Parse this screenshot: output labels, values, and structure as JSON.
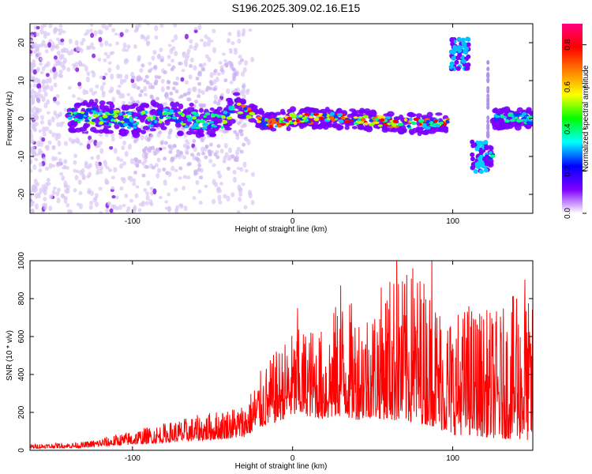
{
  "title": "S196.2025.309.02.16.E15",
  "chart_data": [
    {
      "type": "heatmap",
      "xlabel": "Height of straight line (km)",
      "ylabel": "Frequency (Hz)",
      "xlim": [
        -164,
        150
      ],
      "ylim": [
        -25,
        25
      ],
      "x_ticks": [
        -100,
        0,
        100
      ],
      "y_ticks": [
        -20,
        -10,
        0,
        10,
        20
      ],
      "colorbar": {
        "label": "Normalized spectral amplitude",
        "range": [
          0,
          0.9
        ],
        "ticks": [
          0.0,
          0.2,
          0.4,
          0.6,
          0.8
        ],
        "colors": [
          "#ffffff",
          "#7f00ff",
          "#0000ff",
          "#00ffff",
          "#00ff00",
          "#ffff00",
          "#ff8000",
          "#ff0000",
          "#ff0080"
        ]
      },
      "ridge": [
        {
          "x": -140,
          "f": 0.8
        },
        {
          "x": -120,
          "f": 0.5
        },
        {
          "x": -100,
          "f": -0.5
        },
        {
          "x": -80,
          "f": 0.5
        },
        {
          "x": -60,
          "f": -0.5
        },
        {
          "x": -45,
          "f": -1
        },
        {
          "x": -35,
          "f": 3
        },
        {
          "x": -25,
          "f": 1
        },
        {
          "x": -15,
          "f": -1.5
        },
        {
          "x": 0,
          "f": 0
        },
        {
          "x": 20,
          "f": 0
        },
        {
          "x": 40,
          "f": 0
        },
        {
          "x": 60,
          "f": -1
        },
        {
          "x": 80,
          "f": -1.5
        },
        {
          "x": 97,
          "f": -1
        },
        {
          "x": 100,
          "f": 17
        },
        {
          "x": 110,
          "f": 17
        },
        {
          "x": 113,
          "f": -10
        },
        {
          "x": 122,
          "f": -10
        },
        {
          "x": 125,
          "f": 0
        },
        {
          "x": 150,
          "f": 0
        }
      ],
      "grid": false
    },
    {
      "type": "line",
      "xlabel": "Height of straight line (km)",
      "ylabel": "SNR (10 * v/v)",
      "xlim": [
        -164,
        150
      ],
      "ylim": [
        0,
        1000
      ],
      "x_ticks": [
        -100,
        0,
        100
      ],
      "y_ticks": [
        0,
        200,
        400,
        600,
        800,
        1000
      ],
      "color": "#ff0000",
      "envelope": [
        {
          "x": -164,
          "base": 10,
          "amp": 25
        },
        {
          "x": -130,
          "base": 15,
          "amp": 30
        },
        {
          "x": -110,
          "base": 25,
          "amp": 60
        },
        {
          "x": -90,
          "base": 35,
          "amp": 90
        },
        {
          "x": -70,
          "base": 45,
          "amp": 120
        },
        {
          "x": -50,
          "base": 55,
          "amp": 150
        },
        {
          "x": -30,
          "base": 70,
          "amp": 180
        },
        {
          "x": -20,
          "base": 120,
          "amp": 300
        },
        {
          "x": -10,
          "base": 150,
          "amp": 380
        },
        {
          "x": 0,
          "base": 180,
          "amp": 450
        },
        {
          "x": 10,
          "base": 180,
          "amp": 480
        },
        {
          "x": 20,
          "base": 160,
          "amp": 480
        },
        {
          "x": 30,
          "base": 180,
          "amp": 650
        },
        {
          "x": 40,
          "base": 160,
          "amp": 600
        },
        {
          "x": 50,
          "base": 170,
          "amp": 620
        },
        {
          "x": 60,
          "base": 160,
          "amp": 780
        },
        {
          "x": 70,
          "base": 150,
          "amp": 780
        },
        {
          "x": 80,
          "base": 140,
          "amp": 820
        },
        {
          "x": 90,
          "base": 120,
          "amp": 700
        },
        {
          "x": 100,
          "base": 80,
          "amp": 650
        },
        {
          "x": 110,
          "base": 80,
          "amp": 700
        },
        {
          "x": 120,
          "base": 70,
          "amp": 680
        },
        {
          "x": 130,
          "base": 60,
          "amp": 680
        },
        {
          "x": 140,
          "base": 60,
          "amp": 780
        },
        {
          "x": 150,
          "base": 50,
          "amp": 720
        }
      ],
      "peaks": [
        {
          "x": 30,
          "y": 870
        },
        {
          "x": 65,
          "y": 1000
        },
        {
          "x": 75,
          "y": 960
        },
        {
          "x": 87,
          "y": 1020
        },
        {
          "x": 3,
          "y": 750
        },
        {
          "x": 145,
          "y": 900
        },
        {
          "x": 140,
          "y": 800
        },
        {
          "x": 110,
          "y": 760
        }
      ],
      "grid": false
    }
  ]
}
